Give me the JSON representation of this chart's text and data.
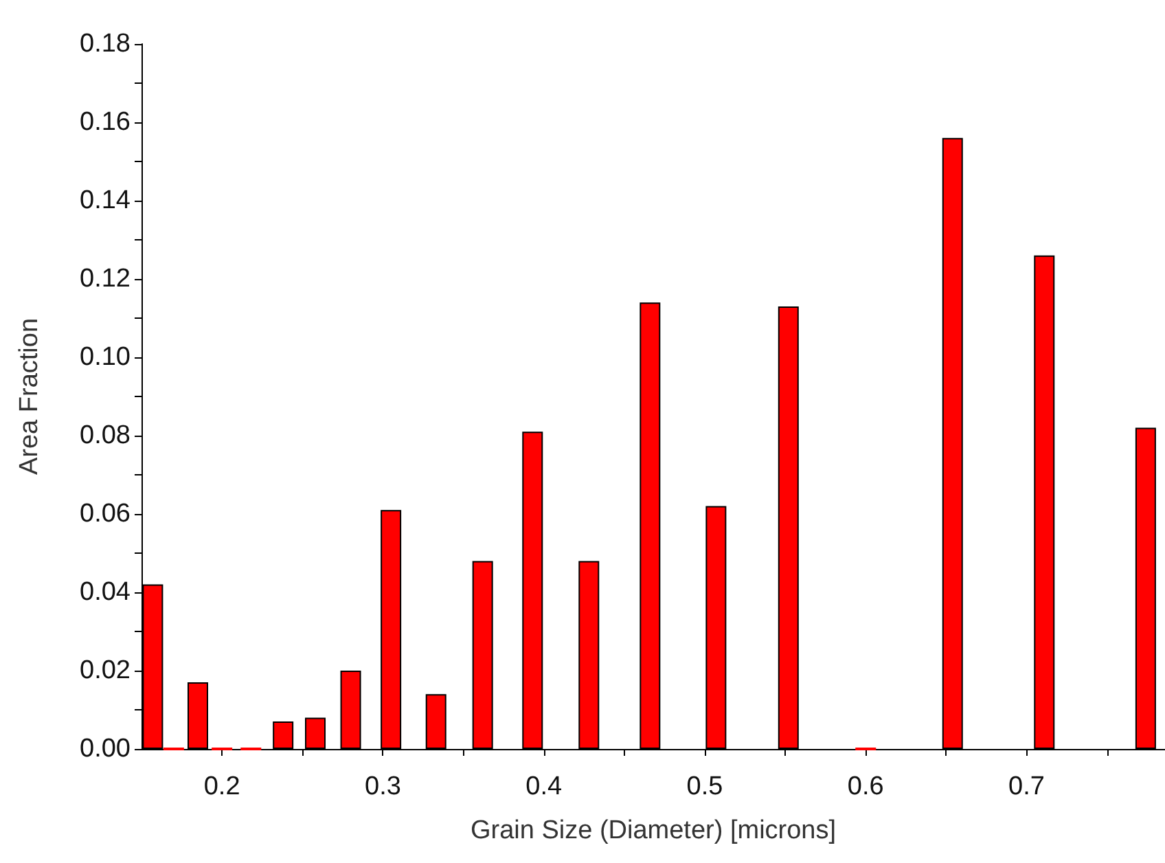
{
  "chart_data": {
    "type": "bar",
    "xlabel": "Grain Size (Diameter) [microns]",
    "ylabel": "Area Fraction",
    "x": [
      0.157,
      0.17,
      0.185,
      0.2,
      0.218,
      0.238,
      0.258,
      0.28,
      0.305,
      0.333,
      0.362,
      0.393,
      0.428,
      0.466,
      0.507,
      0.552,
      0.6,
      0.654,
      0.711,
      0.774
    ],
    "values": [
      0.042,
      0,
      0.017,
      0,
      0,
      0.007,
      0.008,
      0.02,
      0.061,
      0.014,
      0.048,
      0.081,
      0.048,
      0.114,
      0.062,
      0.113,
      0,
      0.156,
      0.126,
      0.082
    ],
    "color": "#ff0000",
    "xlim": [
      0.15,
      0.786
    ],
    "xticks": [
      0.2,
      {
        "value": 0.25,
        "label": null
      },
      0.3,
      {
        "value": 0.35,
        "label": null
      },
      0.4,
      {
        "value": 0.45,
        "label": null
      },
      0.5,
      {
        "value": 0.55,
        "label": null
      },
      0.6,
      {
        "value": 0.65,
        "label": null
      },
      0.7,
      {
        "value": 0.75,
        "label": null
      }
    ],
    "ylim": [
      0,
      0.18
    ],
    "yticks": [
      {
        "value": 0,
        "label": "0.00"
      },
      {
        "value": 0.01,
        "label": null
      },
      {
        "value": 0.02,
        "label": "0.02"
      },
      {
        "value": 0.03,
        "label": null
      },
      {
        "value": 0.04,
        "label": "0.04"
      },
      {
        "value": 0.05,
        "label": null
      },
      {
        "value": 0.06,
        "label": "0.06"
      },
      {
        "value": 0.07,
        "label": null
      },
      {
        "value": 0.08,
        "label": "0.08"
      },
      {
        "value": 0.09,
        "label": null
      },
      {
        "value": 0.1,
        "label": "0.10"
      },
      {
        "value": 0.11,
        "label": null
      },
      {
        "value": 0.12,
        "label": "0.12"
      },
      {
        "value": 0.13,
        "label": null
      },
      {
        "value": 0.14,
        "label": "0.14"
      },
      {
        "value": 0.15,
        "label": null
      },
      {
        "value": 0.16,
        "label": "0.16"
      },
      {
        "value": 0.17,
        "label": null
      },
      {
        "value": 0.18,
        "label": "0.18"
      }
    ],
    "grid": false
  }
}
